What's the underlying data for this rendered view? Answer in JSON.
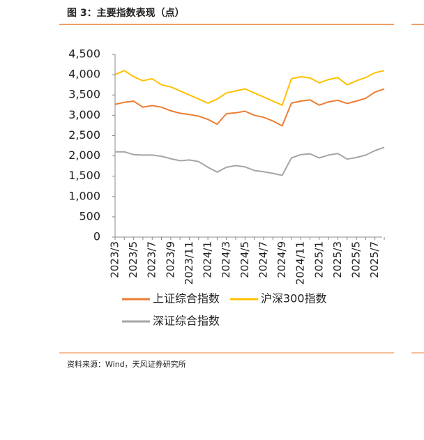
{
  "title": "图 3：主要指数表现（点）",
  "source": "资料来源：Wind，天风证券研究所",
  "chart_data": {
    "type": "line",
    "x": [
      "2023/3",
      null,
      "2023/5",
      null,
      "2023/7",
      null,
      "2023/9",
      null,
      "2023/11",
      null,
      "2024/1",
      null,
      "2024/3",
      null,
      "2024/5",
      null,
      "2024/7",
      null,
      "2024/9",
      null,
      "2024/11",
      null,
      "2025/1",
      null,
      "2025/3",
      null,
      "2025/5",
      null,
      "2025/7",
      null
    ],
    "series": [
      {
        "name": "上证综合指数",
        "color": "#ed7d31",
        "values": [
          3270,
          3320,
          3350,
          3200,
          3240,
          3200,
          3110,
          3050,
          3020,
          2980,
          2900,
          2780,
          3040,
          3060,
          3100,
          3000,
          2950,
          2860,
          2740,
          3300,
          3350,
          3380,
          3250,
          3330,
          3370,
          3290,
          3350,
          3420,
          3570,
          3650
        ]
      },
      {
        "name": "沪深300指数",
        "color": "#ffc000",
        "values": [
          4000,
          4100,
          3950,
          3850,
          3900,
          3750,
          3700,
          3600,
          3500,
          3400,
          3300,
          3400,
          3550,
          3600,
          3650,
          3550,
          3450,
          3350,
          3250,
          3900,
          3950,
          3920,
          3800,
          3880,
          3930,
          3750,
          3850,
          3930,
          4050,
          4100
        ]
      },
      {
        "name": "深证综合指数",
        "color": "#a5a5a5",
        "values": [
          2100,
          2100,
          2030,
          2020,
          2020,
          1990,
          1930,
          1880,
          1900,
          1860,
          1720,
          1600,
          1720,
          1760,
          1730,
          1640,
          1610,
          1570,
          1520,
          1950,
          2030,
          2050,
          1950,
          2020,
          2060,
          1920,
          1960,
          2020,
          2130,
          2210
        ]
      }
    ],
    "ylim": [
      0,
      4500
    ],
    "yticks": [
      0,
      500,
      {
        "value": 1000,
        "label": "1,000"
      },
      {
        "value": 1500,
        "label": "1,500"
      },
      {
        "value": 2000,
        "label": "2,000"
      },
      {
        "value": 2500,
        "label": "2,500"
      },
      {
        "value": 3000,
        "label": "3,000"
      },
      {
        "value": 3500,
        "label": "3,500"
      },
      {
        "value": 4000,
        "label": "4,000"
      },
      {
        "value": 4500,
        "label": "4,500"
      }
    ]
  }
}
